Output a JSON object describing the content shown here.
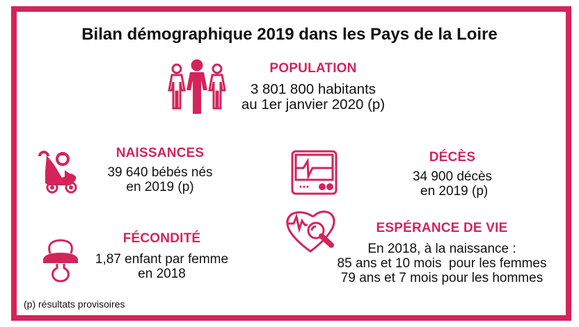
{
  "title": "Bilan démographique 2019 dans les Pays de la Loire",
  "accent_color": "#d4245a",
  "sections": {
    "population": {
      "icon": "people-icon",
      "heading": "POPULATION",
      "lines": [
        "3 801 800 habitants",
        "au 1er janvier 2020 (p)"
      ]
    },
    "naissances": {
      "icon": "stroller-icon",
      "heading": "NAISSANCES",
      "lines": [
        "39 640 bébés nés",
        "en 2019 (p)"
      ]
    },
    "deces": {
      "icon": "heart-monitor-icon",
      "heading": "DÉCÈS",
      "lines": [
        "34 900 décès",
        " en 2019 (p)"
      ]
    },
    "fecondite": {
      "icon": "pacifier-icon",
      "heading": "FÉCONDITÉ",
      "lines": [
        "1,87 enfant par femme",
        "en 2018"
      ]
    },
    "esperance": {
      "icon": "heart-magnifier-icon",
      "heading": "ESPÉRANCE DE VIE",
      "lines": [
        "En 2018, à la naissance :",
        "85 ans et 10 mois  pour les femmes",
        "79 ans et 7 mois pour les hommes"
      ]
    }
  },
  "footnote": "(p) résultats provisoires"
}
